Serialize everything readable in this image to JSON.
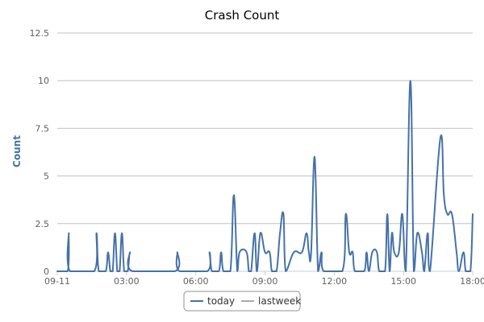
{
  "chart_data": {
    "type": "line",
    "title": "Crash Count",
    "xlabel": "",
    "ylabel": "Count",
    "ylim": [
      0,
      12.5
    ],
    "yticks": [
      "0",
      "2.5",
      "5",
      "7.5",
      "10",
      "12.5"
    ],
    "xticks": [
      "09-11",
      "03:00",
      "06:00",
      "09:00",
      "12:00",
      "15:00",
      "18:00"
    ],
    "xlim_hours": [
      0,
      18
    ],
    "grid": true,
    "legend": {
      "position": "bottom-center"
    },
    "series": [
      {
        "name": "today",
        "color": "#4572a7",
        "points": [
          [
            0,
            0
          ],
          [
            0.45,
            0
          ],
          [
            0.5,
            2
          ],
          [
            0.55,
            0
          ],
          [
            1.6,
            0
          ],
          [
            1.7,
            2
          ],
          [
            1.8,
            0
          ],
          [
            2.1,
            0
          ],
          [
            2.2,
            1
          ],
          [
            2.3,
            0
          ],
          [
            2.4,
            0
          ],
          [
            2.5,
            2
          ],
          [
            2.6,
            0
          ],
          [
            2.7,
            0
          ],
          [
            2.8,
            2
          ],
          [
            2.9,
            0
          ],
          [
            3.05,
            0
          ],
          [
            3.15,
            1
          ],
          [
            3.25,
            0
          ],
          [
            5.1,
            0
          ],
          [
            5.2,
            1
          ],
          [
            5.3,
            0
          ],
          [
            6.5,
            0
          ],
          [
            6.6,
            1
          ],
          [
            6.7,
            0
          ],
          [
            7.0,
            0
          ],
          [
            7.1,
            1
          ],
          [
            7.2,
            0
          ],
          [
            7.5,
            0
          ],
          [
            7.65,
            4
          ],
          [
            7.8,
            0
          ],
          [
            7.9,
            1
          ],
          [
            8.2,
            1
          ],
          [
            8.3,
            0
          ],
          [
            8.4,
            0
          ],
          [
            8.55,
            2
          ],
          [
            8.65,
            0
          ],
          [
            8.8,
            2
          ],
          [
            9.0,
            1
          ],
          [
            9.2,
            1
          ],
          [
            9.3,
            0
          ],
          [
            9.5,
            0
          ],
          [
            9.65,
            2
          ],
          [
            9.8,
            3
          ],
          [
            9.9,
            0
          ],
          [
            10.25,
            1
          ],
          [
            10.6,
            1
          ],
          [
            10.8,
            2
          ],
          [
            10.9,
            1
          ],
          [
            11.0,
            1
          ],
          [
            11.15,
            6
          ],
          [
            11.3,
            0
          ],
          [
            11.45,
            1
          ],
          [
            11.55,
            0
          ],
          [
            12.35,
            0
          ],
          [
            12.5,
            3
          ],
          [
            12.65,
            1
          ],
          [
            12.8,
            1
          ],
          [
            12.9,
            0
          ],
          [
            13.3,
            0
          ],
          [
            13.4,
            1
          ],
          [
            13.5,
            0
          ],
          [
            13.65,
            1
          ],
          [
            13.85,
            1
          ],
          [
            13.95,
            0
          ],
          [
            14.2,
            0
          ],
          [
            14.3,
            3
          ],
          [
            14.4,
            0
          ],
          [
            14.5,
            2
          ],
          [
            14.6,
            1
          ],
          [
            14.8,
            1
          ],
          [
            14.95,
            3
          ],
          [
            15.1,
            0
          ],
          [
            15.3,
            10
          ],
          [
            15.45,
            0
          ],
          [
            15.6,
            2
          ],
          [
            15.8,
            1
          ],
          [
            15.9,
            0
          ],
          [
            16.05,
            2
          ],
          [
            16.15,
            0
          ],
          [
            16.6,
            7
          ],
          [
            16.75,
            4
          ],
          [
            16.9,
            3
          ],
          [
            17.1,
            3
          ],
          [
            17.3,
            1
          ],
          [
            17.4,
            0
          ],
          [
            17.6,
            1
          ],
          [
            17.7,
            0
          ],
          [
            17.9,
            0
          ],
          [
            18.0,
            3
          ]
        ]
      },
      {
        "name": "lastweek",
        "color": "#aaaaaa",
        "points": []
      }
    ]
  }
}
